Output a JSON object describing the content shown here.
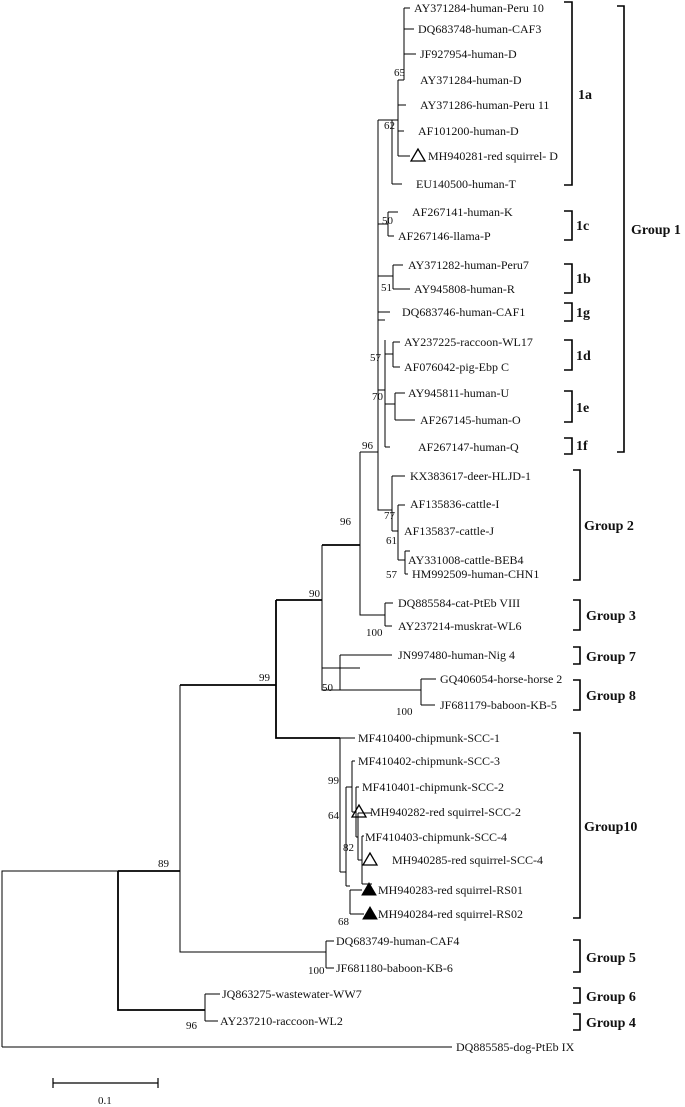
{
  "taxa": [
    {
      "id": "t1",
      "label": "AY371284-human-Peru 10"
    },
    {
      "id": "t2",
      "label": "DQ683748-human-CAF3"
    },
    {
      "id": "t3",
      "label": "JF927954-human-D"
    },
    {
      "id": "t4",
      "label": "AY371284-human-D"
    },
    {
      "id": "t5",
      "label": "AY371286-human-Peru 11"
    },
    {
      "id": "t6",
      "label": "AF101200-human-D"
    },
    {
      "id": "t7",
      "label": "MH940281-red squirrel- D",
      "marker": "open-triangle"
    },
    {
      "id": "t8",
      "label": "EU140500-human-T"
    },
    {
      "id": "t9",
      "label": "AF267141-human-K"
    },
    {
      "id": "t10",
      "label": "AF267146-llama-P"
    },
    {
      "id": "t11",
      "label": "AY371282-human-Peru7"
    },
    {
      "id": "t12",
      "label": "AY945808-human-R"
    },
    {
      "id": "t13",
      "label": "DQ683746-human-CAF1"
    },
    {
      "id": "t14",
      "label": "AY237225-raccoon-WL17"
    },
    {
      "id": "t15",
      "label": "AF076042-pig-Ebp C"
    },
    {
      "id": "t16",
      "label": "AY945811-human-U"
    },
    {
      "id": "t17",
      "label": "AF267145-human-O"
    },
    {
      "id": "t18",
      "label": "AF267147-human-Q"
    },
    {
      "id": "t19",
      "label": "KX383617-deer-HLJD-1"
    },
    {
      "id": "t20",
      "label": "AF135836-cattle-I"
    },
    {
      "id": "t21",
      "label": "AF135837-cattle-J"
    },
    {
      "id": "t22",
      "label": "AY331008-cattle-BEB4"
    },
    {
      "id": "t23",
      "label": "HM992509-human-CHN1"
    },
    {
      "id": "t24",
      "label": "DQ885584-cat-PtEb VIII"
    },
    {
      "id": "t25",
      "label": "AY237214-muskrat-WL6"
    },
    {
      "id": "t26",
      "label": "JN997480-human-Nig 4"
    },
    {
      "id": "t27",
      "label": "GQ406054-horse-horse 2"
    },
    {
      "id": "t28",
      "label": "JF681179-baboon-KB-5"
    },
    {
      "id": "t29",
      "label": "MF410400-chipmunk-SCC-1"
    },
    {
      "id": "t30",
      "label": "MF410402-chipmunk-SCC-3"
    },
    {
      "id": "t31",
      "label": "MF410401-chipmunk-SCC-2"
    },
    {
      "id": "t32",
      "label": "MH940282-red squirrel-SCC-2",
      "marker": "open-triangle"
    },
    {
      "id": "t33",
      "label": "MF410403-chipmunk-SCC-4"
    },
    {
      "id": "t34",
      "label": "MH940285-red squirrel-SCC-4",
      "marker": "open-triangle"
    },
    {
      "id": "t35",
      "label": "MH940283-red squirrel-RS01",
      "marker": "filled-triangle"
    },
    {
      "id": "t36",
      "label": "MH940284-red squirrel-RS02",
      "marker": "filled-triangle"
    },
    {
      "id": "t37",
      "label": "DQ683749-human-CAF4"
    },
    {
      "id": "t38",
      "label": "JF681180-baboon-KB-6"
    },
    {
      "id": "t39",
      "label": "JQ863275-wastewater-WW7"
    },
    {
      "id": "t40",
      "label": "AY237210-raccoon-WL2"
    },
    {
      "id": "t41",
      "label": "DQ885585-dog-PtEb IX"
    }
  ],
  "bootstrap": [
    "65",
    "62",
    "50",
    "51",
    "57",
    "70",
    "96",
    "96",
    "77",
    "61",
    "57",
    "90",
    "100",
    "50",
    "100",
    "99",
    "99",
    "64",
    "82",
    "68",
    "89",
    "100",
    "96"
  ],
  "subgroups": [
    "1a",
    "1c",
    "1b",
    "1g",
    "1d",
    "1e",
    "1f"
  ],
  "groups": [
    "Group 1",
    "Group 2",
    "Group 3",
    "Group 7",
    "Group 8",
    "Group10",
    "Group 5",
    "Group 6",
    "Group 4"
  ],
  "scale_bar": {
    "label": "0.1"
  }
}
